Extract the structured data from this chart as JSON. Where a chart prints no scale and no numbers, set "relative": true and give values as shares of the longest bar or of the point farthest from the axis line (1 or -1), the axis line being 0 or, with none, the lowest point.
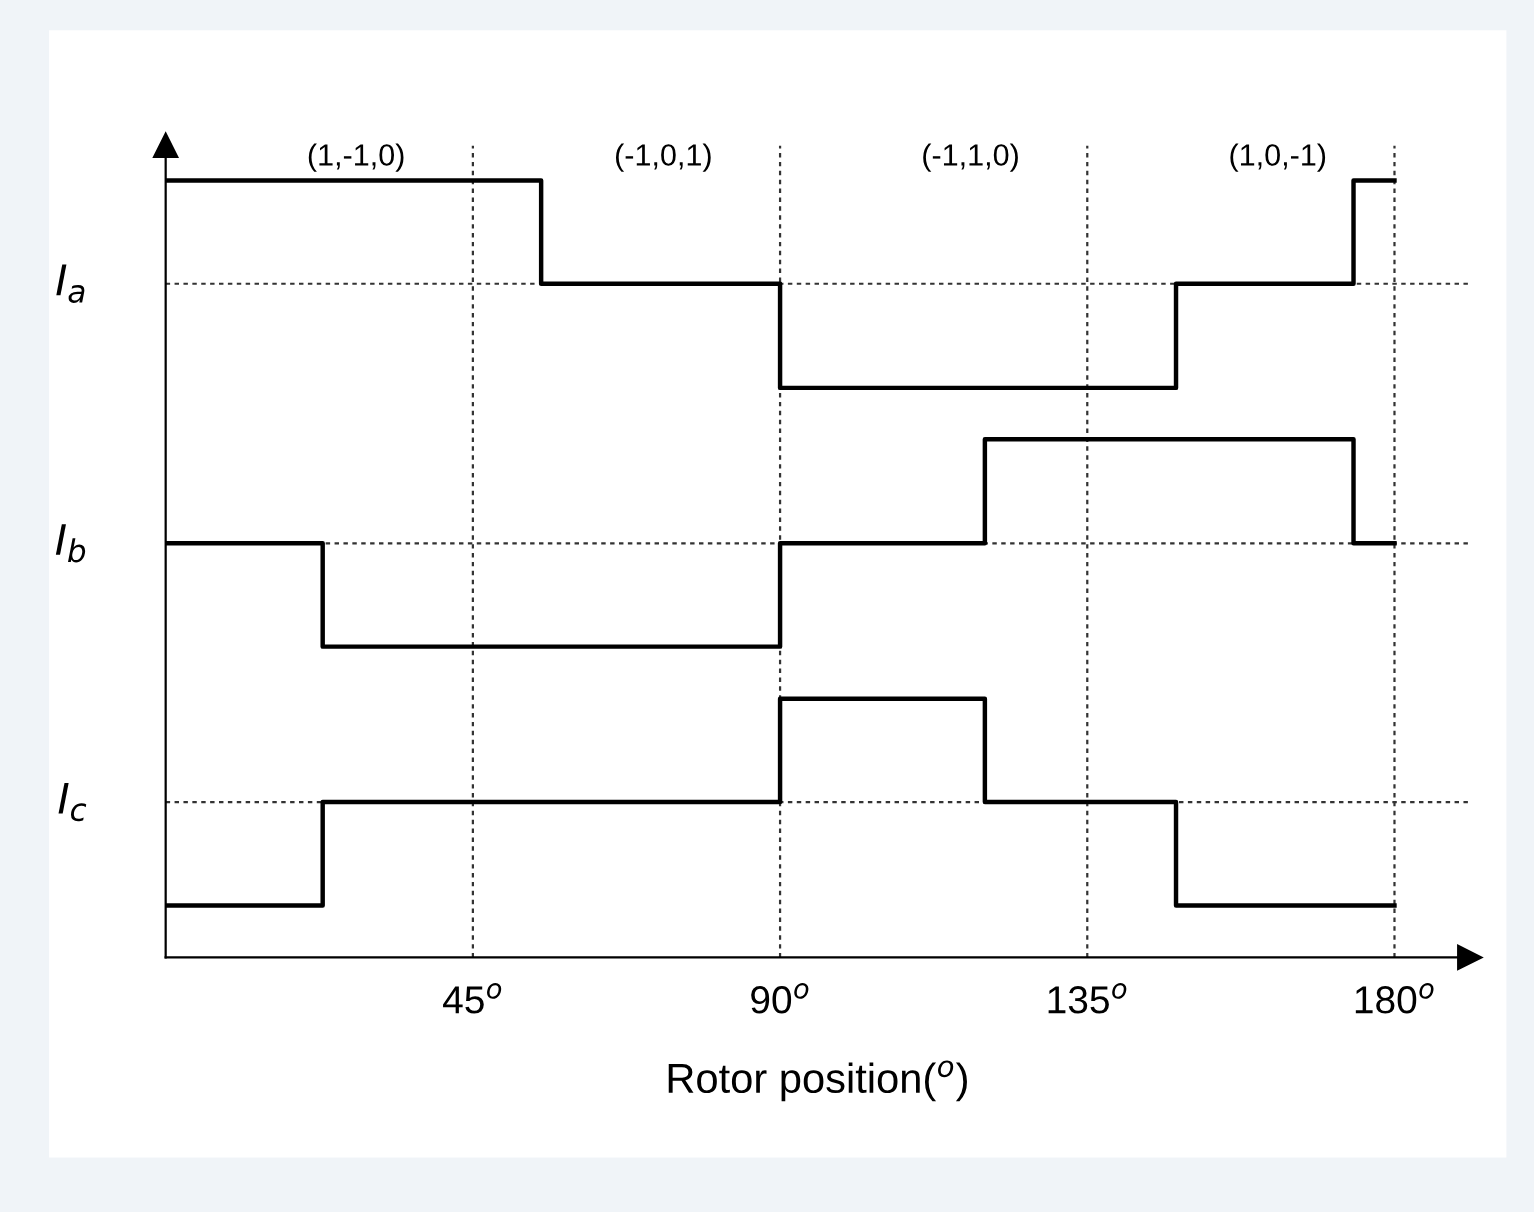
{
  "chart_data": {
    "type": "step",
    "xlabel": "Rotor position($^{o}$)",
    "relative": true,
    "x": [
      0,
      23,
      55,
      90,
      120,
      148,
      174,
      180
    ],
    "series": [
      {
        "color": "#000000",
        "values": [
          1,
          1,
          0.867,
          0.733,
          0.733,
          0.867,
          1,
          1
        ]
      },
      {
        "color": "#000000",
        "values": [
          0.533,
          0.4,
          0.4,
          0.533,
          0.667,
          0.667,
          0.533,
          0.533
        ]
      },
      {
        "color": "#000000",
        "values": [
          0.067,
          0.2,
          0.2,
          0.333,
          0.2,
          0.067,
          0.067,
          0.067
        ]
      }
    ],
    "xlim": [
      0,
      191
    ],
    "xticks": [
      {
        "value": 45,
        "label": "45$^{o}$"
      },
      {
        "value": 90,
        "label": "90$^{o}$"
      },
      {
        "value": 135,
        "label": "135$^{o}$"
      },
      {
        "value": 180,
        "label": "180$^{o}$"
      }
    ],
    "ref_lines": [
      {
        "axis": "y",
        "value": 0.867,
        "label": "I$_{a}$",
        "line_style": "dotted"
      },
      {
        "axis": "y",
        "value": 0.533,
        "label": "I$_{b}$",
        "line_style": "dotted"
      },
      {
        "axis": "y",
        "value": 0.2,
        "label": "I$_{c}$",
        "line_style": "dotted"
      }
    ],
    "grid": "x",
    "line_style": "solid",
    "annotations": [
      "(1,-1,0)",
      "(-1,0,1)",
      "(-1,1,0)",
      "(1,0,-1)"
    ]
  }
}
